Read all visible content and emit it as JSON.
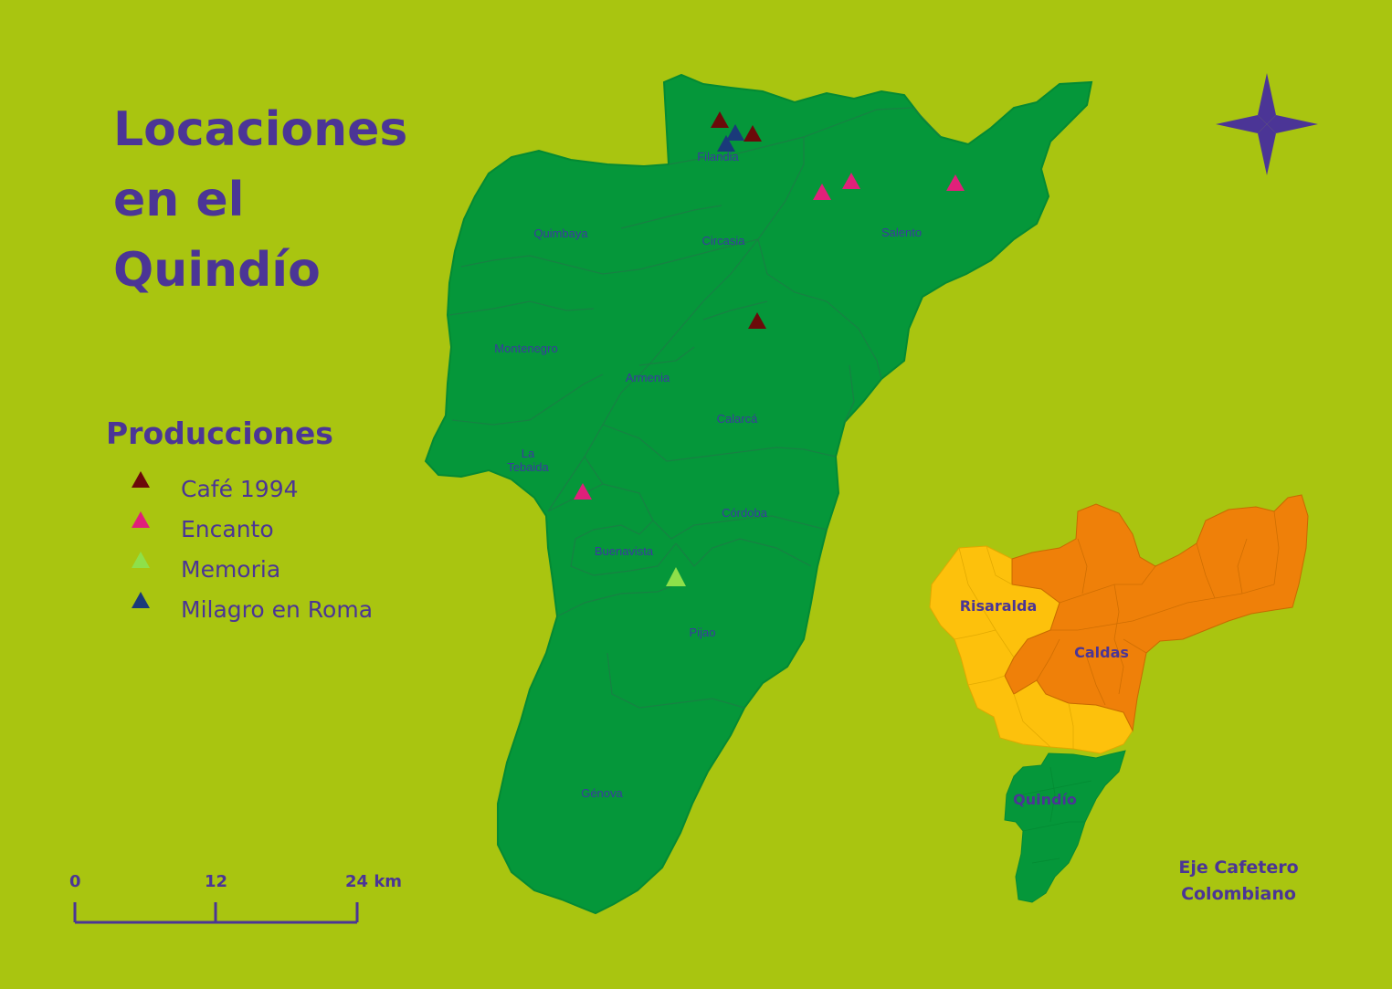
{
  "title": {
    "line1": "Locaciones",
    "line2": "en el",
    "line3": "Quindío"
  },
  "colors": {
    "background": "#a9c510",
    "quindio": "#05973a",
    "caldas": "#ef8009",
    "risaralda": "#fdc10c",
    "text": "#4b3596",
    "cafe_1994": "#6b0a0a",
    "encanto": "#e0207a",
    "memoria": "#8ee04a",
    "milagro": "#1a3a7a"
  },
  "legend": {
    "title": "Producciones",
    "items": [
      {
        "label": "Café 1994",
        "color": "#6b0a0a"
      },
      {
        "label": "Encanto",
        "color": "#e0207a"
      },
      {
        "label": "Memoria",
        "color": "#8ee04a"
      },
      {
        "label": "Milagro en Roma",
        "color": "#1a3a7a"
      }
    ]
  },
  "municipalities": {
    "filandia": "Filandia",
    "quimbaya": "Quimbaya",
    "circasia": "Circasia",
    "salento": "Salento",
    "montenegro": "Montenegro",
    "armenia": "Armenia",
    "calarca": "Calarcá",
    "la_tebaida_1": "La",
    "la_tebaida_2": "Tebaida",
    "cordoba": "Córdoba",
    "buenavista": "Buenavista",
    "pijao": "Pijao",
    "genova": "Génova"
  },
  "scale_bar": {
    "labels": [
      "0",
      "12",
      "24 km"
    ]
  },
  "inset": {
    "risaralda": "Risaralda",
    "caldas": "Caldas",
    "quindio": "Quindío",
    "caption_line1": "Eje Cafetero",
    "caption_line2": "Colombiano"
  },
  "compass": {
    "icon": "compass-rose-icon"
  }
}
